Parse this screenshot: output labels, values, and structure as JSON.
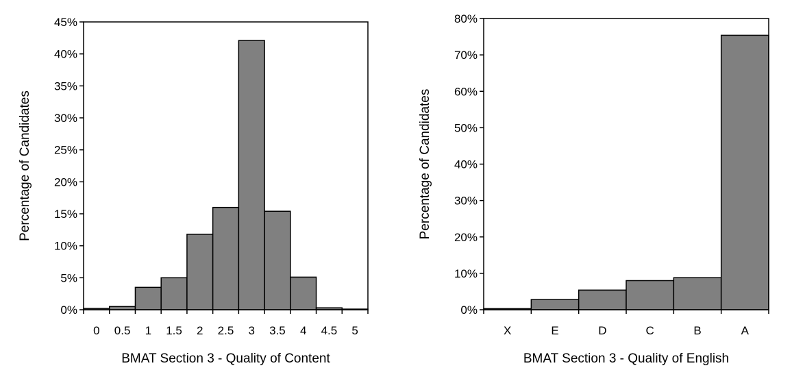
{
  "chart_data": [
    {
      "type": "bar",
      "xlabel": "BMAT Section 3 - Quality of Content",
      "ylabel": "Percentage of Candidates",
      "categories": [
        "0",
        "0.5",
        "1",
        "1.5",
        "2",
        "2.5",
        "3",
        "3.5",
        "4",
        "4.5",
        "5"
      ],
      "values": [
        0.2,
        0.5,
        3.5,
        5.0,
        11.8,
        16.0,
        42.1,
        15.4,
        5.1,
        0.3,
        0.1
      ],
      "ylim": [
        0,
        45
      ],
      "yticks": [
        "0%",
        "5%",
        "10%",
        "15%",
        "20%",
        "25%",
        "30%",
        "35%",
        "40%",
        "45%"
      ],
      "grid": false,
      "bar_color": "#808080"
    },
    {
      "type": "bar",
      "xlabel": "BMAT Section 3 - Quality of English",
      "ylabel": "Percentage of Candidates",
      "categories": [
        "X",
        "E",
        "D",
        "C",
        "B",
        "A"
      ],
      "values": [
        0.3,
        2.8,
        5.4,
        8.0,
        8.8,
        75.4
      ],
      "ylim": [
        0,
        80
      ],
      "yticks": [
        "0%",
        "10%",
        "20%",
        "30%",
        "40%",
        "50%",
        "60%",
        "70%",
        "80%"
      ],
      "grid": false,
      "bar_color": "#808080"
    }
  ]
}
